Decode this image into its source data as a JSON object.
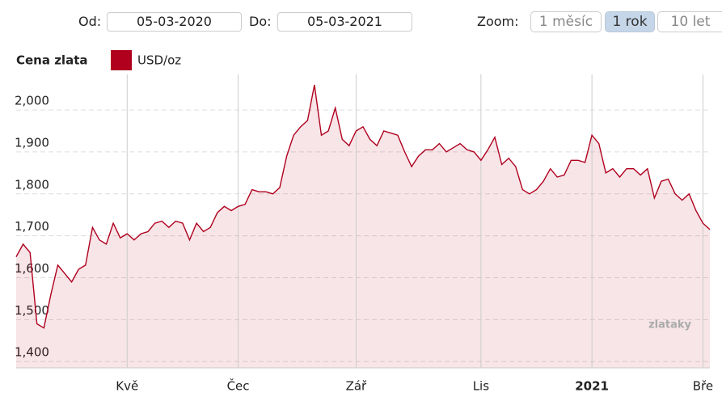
{
  "controls": {
    "from_label": "Od:",
    "from": "05-03-2020",
    "to_label": "Do:",
    "to": "05-03-2021",
    "zoom_label": "Zoom:",
    "zoom": [
      "1 měsíc",
      "1 rok",
      "10 let"
    ]
  },
  "chart_data": {
    "type": "area",
    "legend_title": "Cena zlata",
    "watermark": "zlataky",
    "categories": [
      "2020-03-05",
      null,
      null,
      null,
      null,
      null,
      null,
      null,
      null,
      null,
      null,
      null,
      null,
      null,
      null,
      null,
      "Kvě",
      null,
      null,
      null,
      null,
      null,
      null,
      null,
      null,
      null,
      null,
      null,
      null,
      null,
      null,
      null,
      "Čec",
      null,
      null,
      null,
      null,
      null,
      null,
      null,
      null,
      null,
      null,
      null,
      null,
      null,
      null,
      null,
      null,
      "Zář",
      null,
      null,
      null,
      null,
      null,
      null,
      null,
      null,
      null,
      null,
      null,
      null,
      null,
      null,
      null,
      null,
      null,
      "Lis",
      null,
      null,
      null,
      null,
      null,
      null,
      null,
      null,
      null,
      null,
      null,
      null,
      null,
      null,
      null,
      "2021",
      null,
      null,
      null,
      null,
      null,
      null,
      null,
      null,
      null,
      null,
      null,
      null,
      null,
      null,
      null,
      "Bře",
      null
    ],
    "series": [
      {
        "name": "USD/oz",
        "color": "#b0001e",
        "values": [
          1650,
          1680,
          1660,
          1490,
          1480,
          1560,
          1630,
          1610,
          1590,
          1620,
          1630,
          1720,
          1690,
          1680,
          1730,
          1695,
          1705,
          1690,
          1705,
          1710,
          1730,
          1735,
          1720,
          1735,
          1730,
          1690,
          1730,
          1710,
          1720,
          1755,
          1770,
          1760,
          1770,
          1775,
          1810,
          1805,
          1805,
          1800,
          1815,
          1890,
          1940,
          1960,
          1975,
          2060,
          1940,
          1950,
          2005,
          1930,
          1915,
          1950,
          1960,
          1930,
          1915,
          1950,
          1945,
          1940,
          1900,
          1865,
          1890,
          1905,
          1905,
          1920,
          1900,
          1910,
          1920,
          1905,
          1900,
          1880,
          1905,
          1935,
          1870,
          1885,
          1865,
          1810,
          1800,
          1810,
          1830,
          1860,
          1840,
          1845,
          1880,
          1880,
          1875,
          1940,
          1920,
          1850,
          1860,
          1840,
          1860,
          1860,
          1845,
          1860,
          1790,
          1830,
          1835,
          1800,
          1785,
          1800,
          1760,
          1730,
          1715
        ]
      }
    ],
    "ylim": [
      1385,
      2085
    ],
    "yticks": [
      {
        "value": 1400,
        "label": "1,400"
      },
      {
        "value": 1500,
        "label": "1,500"
      },
      {
        "value": 1600,
        "label": "1,600"
      },
      {
        "value": 1700,
        "label": "1,700"
      },
      {
        "value": 1800,
        "label": "1,800"
      },
      {
        "value": 1900,
        "label": "1,900"
      },
      {
        "value": 2000,
        "label": "2,000"
      }
    ],
    "grid": true
  }
}
